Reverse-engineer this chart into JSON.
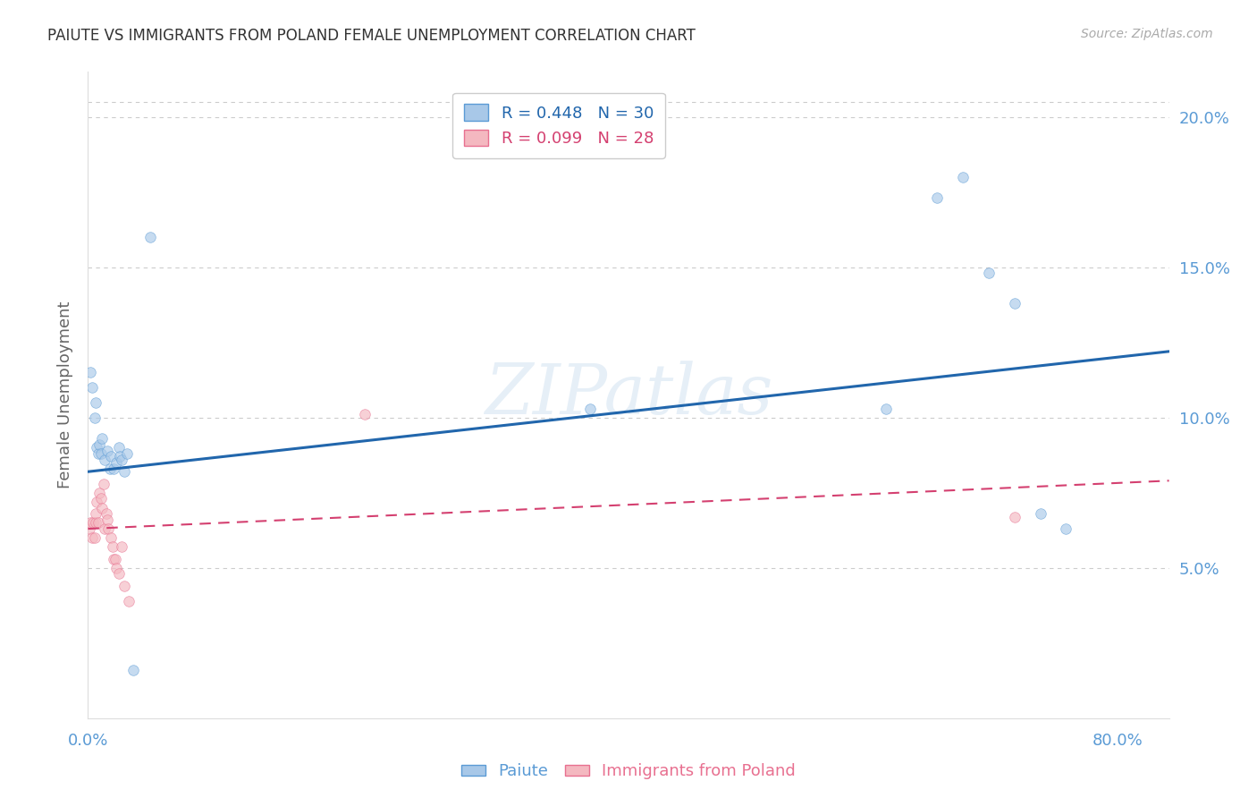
{
  "title": "PAIUTE VS IMMIGRANTS FROM POLAND FEMALE UNEMPLOYMENT CORRELATION CHART",
  "source": "Source: ZipAtlas.com",
  "ylabel": "Female Unemployment",
  "xlim": [
    0.0,
    0.84
  ],
  "ylim": [
    0.0,
    0.215
  ],
  "paiute_x": [
    0.002,
    0.003,
    0.005,
    0.006,
    0.007,
    0.008,
    0.009,
    0.01,
    0.011,
    0.013,
    0.015,
    0.017,
    0.018,
    0.02,
    0.022,
    0.024,
    0.025,
    0.026,
    0.028,
    0.03,
    0.035,
    0.048,
    0.39,
    0.62,
    0.66,
    0.68,
    0.7,
    0.72,
    0.74,
    0.76
  ],
  "paiute_y": [
    0.115,
    0.11,
    0.1,
    0.105,
    0.09,
    0.088,
    0.091,
    0.088,
    0.093,
    0.086,
    0.089,
    0.083,
    0.087,
    0.083,
    0.085,
    0.09,
    0.087,
    0.086,
    0.082,
    0.088,
    0.016,
    0.16,
    0.103,
    0.103,
    0.173,
    0.18,
    0.148,
    0.138,
    0.068,
    0.063
  ],
  "poland_x": [
    0.001,
    0.002,
    0.003,
    0.004,
    0.005,
    0.006,
    0.006,
    0.007,
    0.008,
    0.009,
    0.01,
    0.011,
    0.012,
    0.013,
    0.014,
    0.015,
    0.016,
    0.018,
    0.019,
    0.02,
    0.021,
    0.022,
    0.024,
    0.026,
    0.028,
    0.032,
    0.215,
    0.72
  ],
  "poland_y": [
    0.063,
    0.065,
    0.06,
    0.065,
    0.06,
    0.065,
    0.068,
    0.072,
    0.065,
    0.075,
    0.073,
    0.07,
    0.078,
    0.063,
    0.068,
    0.066,
    0.063,
    0.06,
    0.057,
    0.053,
    0.053,
    0.05,
    0.048,
    0.057,
    0.044,
    0.039,
    0.101,
    0.067
  ],
  "paiute_color": "#a8c8e8",
  "paiute_edge_color": "#5b9bd5",
  "poland_color": "#f4b8c0",
  "poland_edge_color": "#e87090",
  "marker_size": 70,
  "marker_alpha": 0.65,
  "trendline_paiute_color": "#2166ac",
  "trendline_poland_color": "#d44070",
  "trendline_paiute_start_y": 0.082,
  "trendline_paiute_end_y": 0.122,
  "trendline_poland_start_y": 0.063,
  "trendline_poland_end_y": 0.079,
  "watermark": "ZIPatlas",
  "background_color": "#ffffff",
  "grid_color": "#cccccc",
  "tick_color": "#5b9bd5",
  "title_fontsize": 12,
  "source_color": "#aaaaaa",
  "ylabel_color": "#666666",
  "legend_R1": "R = 0.448",
  "legend_N1": "N = 30",
  "legend_R2": "R = 0.099",
  "legend_N2": "N = 28",
  "legend_R1_color": "#2166ac",
  "legend_N1_color": "#e05050",
  "legend_R2_color": "#d44070",
  "legend_N2_color": "#e05050"
}
